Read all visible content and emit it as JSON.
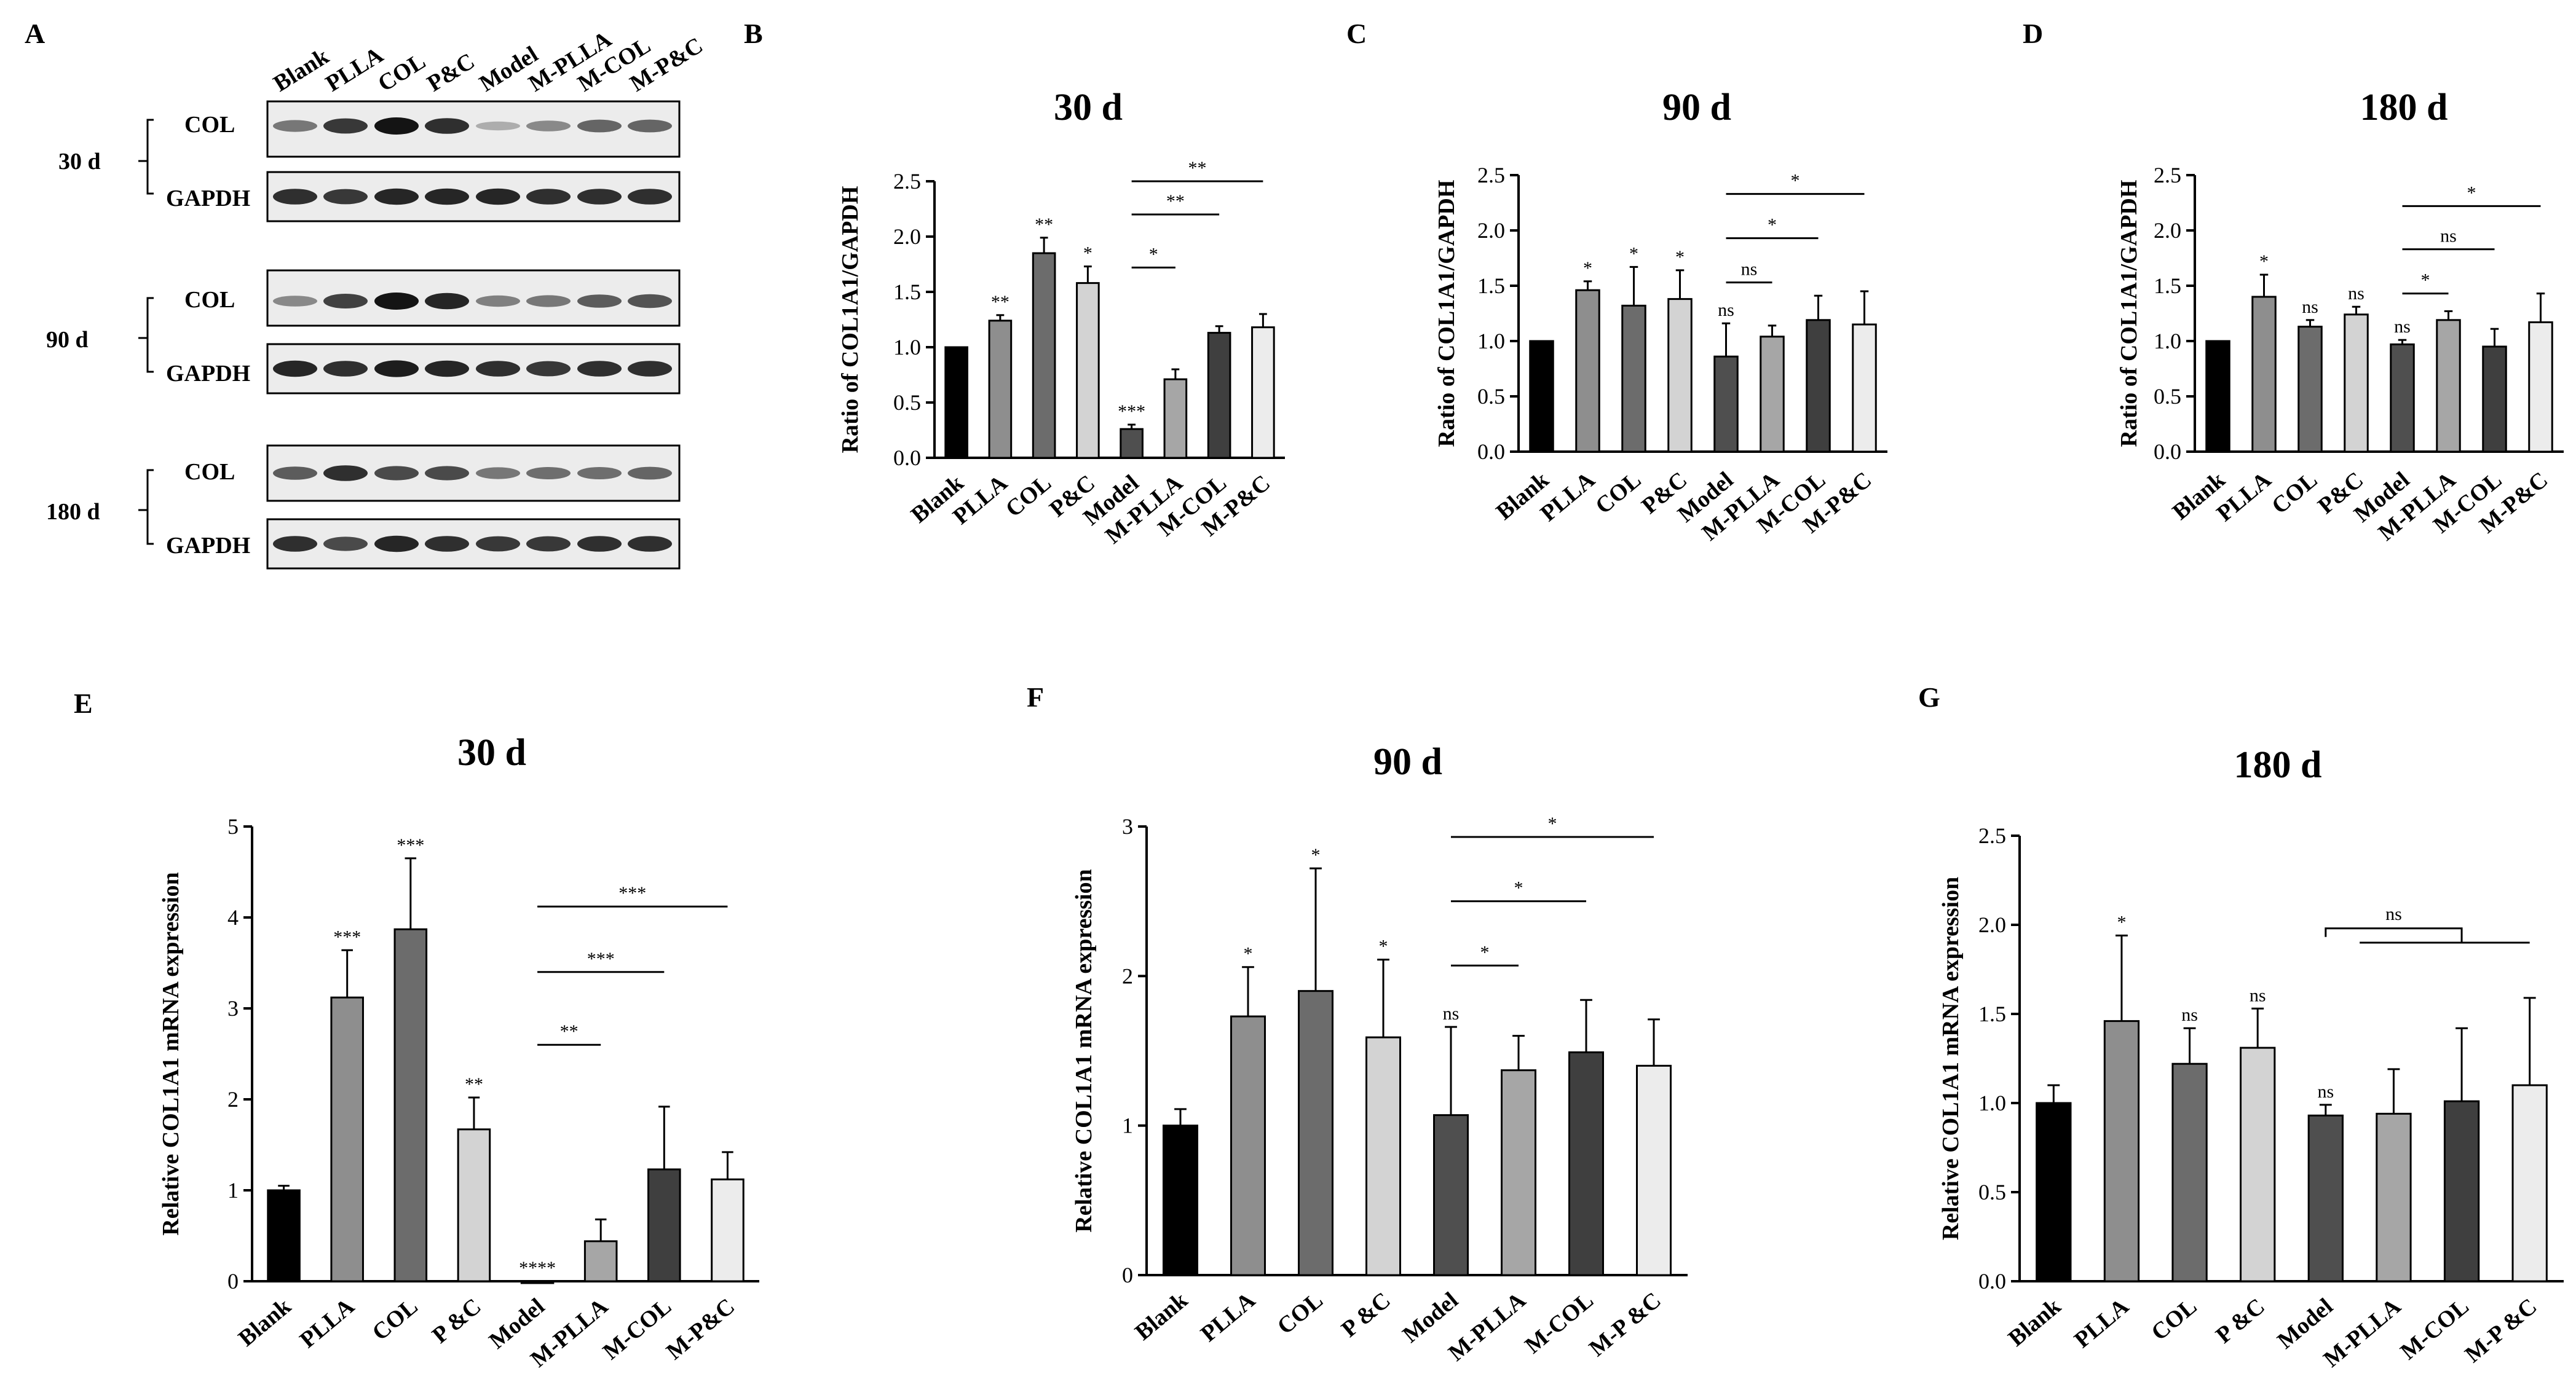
{
  "figure": {
    "panel_labels": [
      "A",
      "B",
      "C",
      "D",
      "E",
      "F",
      "G"
    ]
  },
  "western_blot": {
    "lanes": [
      "Blank",
      "PLLA",
      "COL",
      "P&C",
      "Model",
      "M-PLLA",
      "M-COL",
      "M-P&C"
    ],
    "timepoints": [
      {
        "time": "30 d",
        "bands": [
          "COL",
          "GAPDH"
        ]
      },
      {
        "time": "90 d",
        "bands": [
          "COL",
          "GAPDH"
        ]
      },
      {
        "time": "180 d",
        "bands": [
          "COL",
          "GAPDH"
        ]
      }
    ]
  },
  "chart_data": [
    {
      "panel": "B",
      "type": "bar",
      "title": "30 d",
      "ylabel": "Ratio of COL1A1/GAPDH",
      "xlabel": "",
      "categories": [
        "Blank",
        "PLLA",
        "COL",
        "P&C",
        "Model",
        "M-PLLA",
        "M-COL",
        "M-P&C"
      ],
      "values": [
        1.0,
        1.24,
        1.85,
        1.58,
        0.26,
        0.71,
        1.13,
        1.18
      ],
      "errors": [
        0.0,
        0.05,
        0.14,
        0.15,
        0.04,
        0.09,
        0.06,
        0.12
      ],
      "annotations": [
        "",
        "**",
        "**",
        "*",
        "***",
        "",
        "",
        ""
      ],
      "ylim": [
        0,
        2.5
      ],
      "yticks": [
        0.0,
        0.5,
        1.0,
        1.5,
        2.0,
        2.5
      ],
      "ytick_labels": [
        "0.0",
        "0.5",
        "1.0",
        "1.5",
        "2.0",
        "2.5"
      ],
      "colors": [
        "#000000",
        "#8e8e8e",
        "#6c6c6c",
        "#d3d3d3",
        "#4f4f4f",
        "#a6a6a6",
        "#3f3f3f",
        "#ececec"
      ],
      "brackets": [
        {
          "from": 4,
          "to": 5,
          "y": 1.72,
          "label": "*"
        },
        {
          "from": 4,
          "to": 6,
          "y": 2.2,
          "label": "**"
        },
        {
          "from": 4,
          "to": 7,
          "y": 2.5,
          "label": "**"
        }
      ]
    },
    {
      "panel": "C",
      "type": "bar",
      "title": "90 d",
      "ylabel": "Ratio of COL1A1/GAPDH",
      "xlabel": "",
      "categories": [
        "Blank",
        "PLLA",
        "COL",
        "P&C",
        "Model",
        "M-PLLA",
        "M-COL",
        "M-P&C"
      ],
      "values": [
        1.0,
        1.46,
        1.32,
        1.38,
        0.86,
        1.04,
        1.19,
        1.15
      ],
      "errors": [
        0.0,
        0.08,
        0.35,
        0.26,
        0.3,
        0.1,
        0.22,
        0.3
      ],
      "annotations": [
        "",
        "*",
        "*",
        "*",
        "ns",
        "",
        "",
        ""
      ],
      "ylim": [
        0,
        2.5
      ],
      "yticks": [
        0.0,
        0.5,
        1.0,
        1.5,
        2.0,
        2.5
      ],
      "ytick_labels": [
        "0.0",
        "0.5",
        "1.0",
        "1.5",
        "2.0",
        "2.5"
      ],
      "colors": [
        "#000000",
        "#8e8e8e",
        "#6c6c6c",
        "#d3d3d3",
        "#4f4f4f",
        "#a6a6a6",
        "#3f3f3f",
        "#ececec"
      ],
      "brackets": [
        {
          "from": 4,
          "to": 5,
          "y": 1.53,
          "label": "ns"
        },
        {
          "from": 4,
          "to": 6,
          "y": 1.93,
          "label": "*"
        },
        {
          "from": 4,
          "to": 7,
          "y": 2.33,
          "label": "*"
        }
      ]
    },
    {
      "panel": "D",
      "type": "bar",
      "title": "180 d",
      "ylabel": "Ratio of COL1A1/GAPDH",
      "xlabel": "",
      "categories": [
        "Blank",
        "PLLA",
        "COL",
        "P&C",
        "Model",
        "M-PLLA",
        "M-COL",
        "M-P&C"
      ],
      "values": [
        1.0,
        1.4,
        1.13,
        1.24,
        0.97,
        1.19,
        0.95,
        1.17
      ],
      "errors": [
        0.0,
        0.2,
        0.06,
        0.07,
        0.04,
        0.08,
        0.16,
        0.26
      ],
      "annotations": [
        "",
        "*",
        "ns",
        "ns",
        "ns",
        "",
        "",
        ""
      ],
      "ylim": [
        0,
        2.5
      ],
      "yticks": [
        0.0,
        0.5,
        1.0,
        1.5,
        2.0,
        2.5
      ],
      "ytick_labels": [
        "0.0",
        "0.5",
        "1.0",
        "1.5",
        "2.0",
        "2.5"
      ],
      "colors": [
        "#000000",
        "#8e8e8e",
        "#6c6c6c",
        "#d3d3d3",
        "#4f4f4f",
        "#a6a6a6",
        "#3f3f3f",
        "#ececec"
      ],
      "brackets": [
        {
          "from": 4,
          "to": 5,
          "y": 1.43,
          "label": "*"
        },
        {
          "from": 4,
          "to": 6,
          "y": 1.83,
          "label": "ns"
        },
        {
          "from": 4,
          "to": 7,
          "y": 2.22,
          "label": "*"
        }
      ]
    },
    {
      "panel": "E",
      "type": "bar",
      "title": "30 d",
      "ylabel": "Relative COL1A1 mRNA expression",
      "xlabel": "",
      "categories": [
        "Blank",
        "PLLA",
        "COL",
        "P &C",
        "Model",
        "M-PLLA",
        "M-COL",
        "M-P&C"
      ],
      "values": [
        1.0,
        3.12,
        3.87,
        1.67,
        0.0,
        0.44,
        1.23,
        1.12
      ],
      "errors": [
        0.05,
        0.52,
        0.78,
        0.35,
        0.0,
        0.24,
        0.69,
        0.3
      ],
      "annotations": [
        "",
        "***",
        "***",
        "**",
        "****",
        "",
        "",
        ""
      ],
      "ylim": [
        0,
        5
      ],
      "yticks": [
        0,
        1,
        2,
        3,
        4,
        5
      ],
      "ytick_labels": [
        "0",
        "1",
        "2",
        "3",
        "4",
        "5"
      ],
      "colors": [
        "#000000",
        "#8e8e8e",
        "#6c6c6c",
        "#d3d3d3",
        "#4f4f4f",
        "#a6a6a6",
        "#3f3f3f",
        "#ececec"
      ],
      "brackets": [
        {
          "from": 4,
          "to": 5,
          "y": 2.6,
          "label": "**"
        },
        {
          "from": 4,
          "to": 6,
          "y": 3.4,
          "label": "***"
        },
        {
          "from": 4,
          "to": 7,
          "y": 4.12,
          "label": "***"
        }
      ]
    },
    {
      "panel": "F",
      "type": "bar",
      "title": "90 d",
      "ylabel": "Relative COL1A1 mRNA expression",
      "xlabel": "",
      "categories": [
        "Blank",
        "PLLA",
        "COL",
        "P &C",
        "Model",
        "M-PLLA",
        "M-COL",
        "M-P &C"
      ],
      "values": [
        1.0,
        1.73,
        1.9,
        1.59,
        1.07,
        1.37,
        1.49,
        1.4
      ],
      "errors": [
        0.11,
        0.33,
        0.82,
        0.52,
        0.59,
        0.23,
        0.35,
        0.31
      ],
      "annotations": [
        "",
        "*",
        "*",
        "*",
        "ns",
        "",
        "",
        ""
      ],
      "ylim": [
        0,
        3
      ],
      "yticks": [
        0,
        1,
        2,
        3
      ],
      "ytick_labels": [
        "0",
        "1",
        "2",
        "3"
      ],
      "colors": [
        "#000000",
        "#8e8e8e",
        "#6c6c6c",
        "#d3d3d3",
        "#4f4f4f",
        "#a6a6a6",
        "#3f3f3f",
        "#ececec"
      ],
      "brackets": [
        {
          "from": 4,
          "to": 5,
          "y": 2.07,
          "label": "*"
        },
        {
          "from": 4,
          "to": 6,
          "y": 2.5,
          "label": "*"
        },
        {
          "from": 4,
          "to": 7,
          "y": 2.93,
          "label": "*"
        }
      ]
    },
    {
      "panel": "G",
      "type": "bar",
      "title": "180 d",
      "ylabel": "Relative COL1A1 mRNA expression",
      "xlabel": "",
      "categories": [
        "Blank",
        "PLLA",
        "COL",
        "P &C",
        "Model",
        "M-PLLA",
        "M-COL",
        "M-P &C"
      ],
      "values": [
        1.0,
        1.46,
        1.22,
        1.31,
        0.93,
        0.94,
        1.01,
        1.1
      ],
      "errors": [
        0.1,
        0.48,
        0.2,
        0.22,
        0.06,
        0.25,
        0.41,
        0.49
      ],
      "annotations": [
        "",
        "*",
        "ns",
        "ns",
        "ns",
        "",
        "",
        ""
      ],
      "ylim": [
        0,
        2.5
      ],
      "yticks": [
        0.0,
        0.5,
        1.0,
        1.5,
        2.0,
        2.5
      ],
      "ytick_labels": [
        "0.0",
        "0.5",
        "1.0",
        "1.5",
        "2.0",
        "2.5"
      ],
      "colors": [
        "#000000",
        "#8e8e8e",
        "#6c6c6c",
        "#d3d3d3",
        "#4f4f4f",
        "#a6a6a6",
        "#3f3f3f",
        "#ececec"
      ],
      "brackets": [
        {
          "from": 4,
          "to": 6,
          "y": 1.98,
          "label": "ns",
          "type": "split",
          "split_to": 7,
          "split_y": 1.9
        }
      ]
    }
  ]
}
